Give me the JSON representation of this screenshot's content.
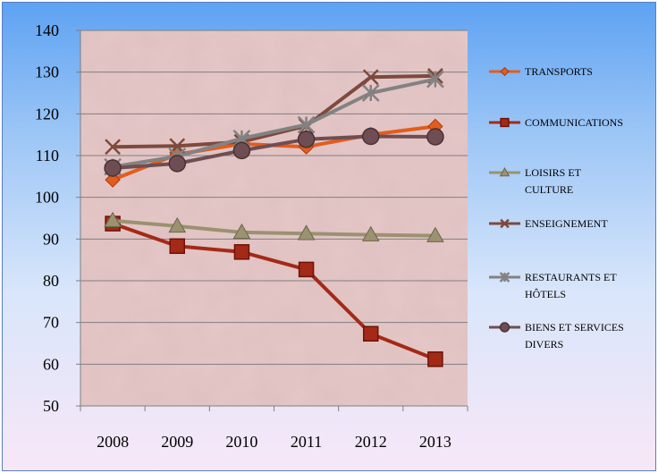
{
  "chart_data": {
    "type": "line",
    "title": "",
    "xlabel": "",
    "ylabel": "",
    "x": [
      "2008",
      "2009",
      "2010",
      "2011",
      "2012",
      "2013"
    ],
    "ylim": [
      50,
      140
    ],
    "yticks": [
      50,
      60,
      70,
      80,
      90,
      100,
      110,
      120,
      130,
      140
    ],
    "grid": true,
    "legend_position": "right",
    "plot_background": "#e6c7c7",
    "series": [
      {
        "name": "TRANSPORTS",
        "legend_lines": [
          "TRANSPORTS"
        ],
        "color": "#e25d1c",
        "marker": "diamond",
        "values": [
          104.2,
          110.3,
          112.8,
          112.1,
          115.0,
          117.0
        ]
      },
      {
        "name": "COMMUNICATIONS",
        "legend_lines": [
          "COMMUNICATIONS"
        ],
        "color": "#a32a17",
        "marker": "square",
        "values": [
          93.7,
          88.3,
          86.9,
          82.7,
          67.3,
          61.2
        ]
      },
      {
        "name": "LOISIRS ET CULTURE",
        "legend_lines": [
          "LOISIRS ET",
          "CULTURE"
        ],
        "color": "#9a9270",
        "marker": "triangle",
        "values": [
          94.4,
          93.1,
          91.6,
          91.3,
          91.0,
          90.8
        ]
      },
      {
        "name": "ENSEIGNEMENT",
        "legend_lines": [
          "ENSEIGNEMENT"
        ],
        "color": "#7d4a3c",
        "marker": "x",
        "values": [
          112.1,
          112.3,
          113.3,
          117.1,
          128.8,
          129.1
        ]
      },
      {
        "name": "RESTAURANTS ET HÔTELS",
        "legend_lines": [
          "RESTAURANTS ET",
          "HÔTELS"
        ],
        "color": "#838283",
        "marker": "star",
        "values": [
          107.3,
          109.8,
          114.1,
          117.4,
          125.0,
          128.3
        ]
      },
      {
        "name": "BIENS ET SERVICES DIVERS",
        "legend_lines": [
          "BIENS ET SERVICES",
          "DIVERS"
        ],
        "color": "#6f4e53",
        "marker": "circle",
        "values": [
          107.0,
          108.1,
          111.2,
          113.9,
          114.6,
          114.5
        ]
      }
    ]
  }
}
